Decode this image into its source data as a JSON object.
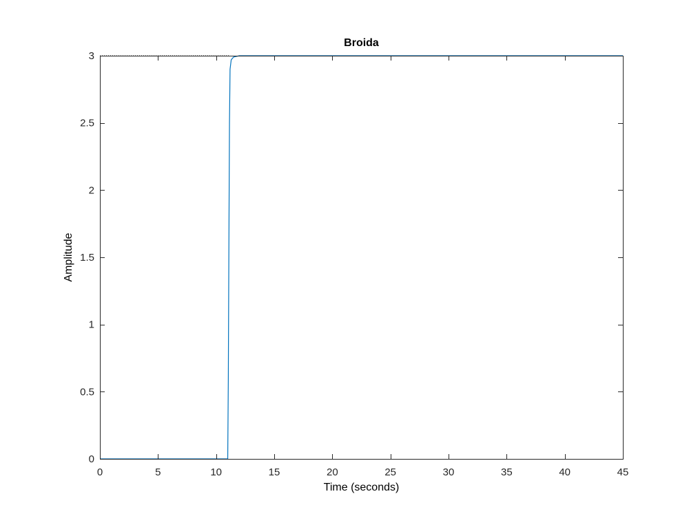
{
  "chart_data": {
    "type": "line",
    "title": "Broida",
    "xlabel": "Time (seconds)",
    "ylabel": "Amplitude",
    "xlim": [
      0,
      45
    ],
    "ylim": [
      0,
      3
    ],
    "xticks": [
      0,
      5,
      10,
      15,
      20,
      25,
      30,
      35,
      40,
      45
    ],
    "yticks": [
      0,
      0.5,
      1,
      1.5,
      2,
      2.5,
      3
    ],
    "xtick_labels": [
      "0",
      "5",
      "10",
      "15",
      "20",
      "25",
      "30",
      "35",
      "40",
      "45"
    ],
    "ytick_labels": [
      "0",
      "0.5",
      "1",
      "1.5",
      "2",
      "2.5",
      "3"
    ],
    "grid": false,
    "series": [
      {
        "color": "#0072bd",
        "x": [
          0,
          11.0,
          11.05,
          11.1,
          11.15,
          11.2,
          11.3,
          11.5,
          12.0,
          45
        ],
        "y": [
          0,
          0,
          0.6,
          1.6,
          2.5,
          2.9,
          2.97,
          2.99,
          3.0,
          3.0
        ]
      }
    ],
    "steady_state": {
      "value": 3,
      "x_end": 11.2,
      "style": "dotted",
      "color": "#000000"
    }
  }
}
